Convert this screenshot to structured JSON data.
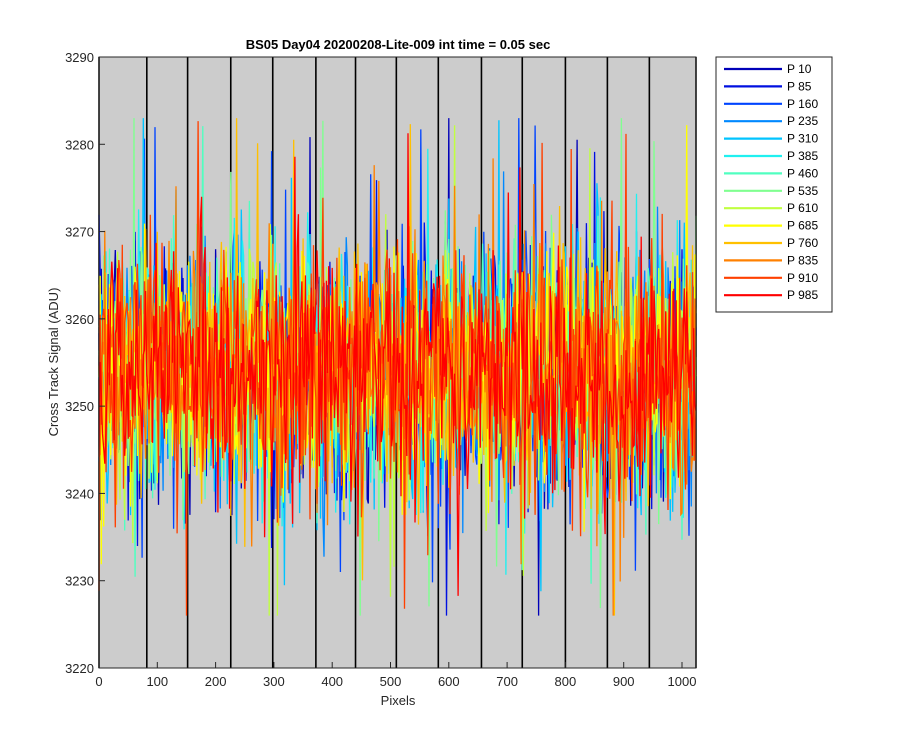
{
  "chart_data": {
    "type": "line",
    "title": "BS05 Day04 20200208-Lite-009 int time = 0.05 sec",
    "xlabel": "Pixels",
    "ylabel": "Cross Track Signal (ADU)",
    "xlim": [
      0,
      1024
    ],
    "ylim": [
      3220,
      3290
    ],
    "xticks": [
      0,
      100,
      200,
      300,
      400,
      500,
      600,
      700,
      800,
      900,
      1000
    ],
    "yticks": [
      3220,
      3230,
      3240,
      3250,
      3260,
      3270,
      3280,
      3290
    ],
    "background": "#cccccc",
    "vertical_lines_x": [
      0,
      82,
      152,
      226,
      298,
      372,
      440,
      510,
      582,
      656,
      726,
      800,
      872,
      944,
      1024
    ],
    "grid": false,
    "legend_position": "outside-top-right",
    "signal_summary": {
      "mean": 3254,
      "spread": 8,
      "approx_min": 3226,
      "approx_max": 3283
    },
    "series": [
      {
        "name": "P 10",
        "color": "#0000b8"
      },
      {
        "name": "P 85",
        "color": "#0010e0"
      },
      {
        "name": "P 160",
        "color": "#0044ff"
      },
      {
        "name": "P 235",
        "color": "#0088ff"
      },
      {
        "name": "P 310",
        "color": "#00c4ff"
      },
      {
        "name": "P 385",
        "color": "#20f0f0"
      },
      {
        "name": "P 460",
        "color": "#50ffc0"
      },
      {
        "name": "P 535",
        "color": "#80ff90"
      },
      {
        "name": "P 610",
        "color": "#c0ff40"
      },
      {
        "name": "P 685",
        "color": "#ffff00"
      },
      {
        "name": "P 760",
        "color": "#ffc000"
      },
      {
        "name": "P 835",
        "color": "#ff8000"
      },
      {
        "name": "P 910",
        "color": "#ff4000"
      },
      {
        "name": "P 985",
        "color": "#ff0000"
      }
    ]
  }
}
